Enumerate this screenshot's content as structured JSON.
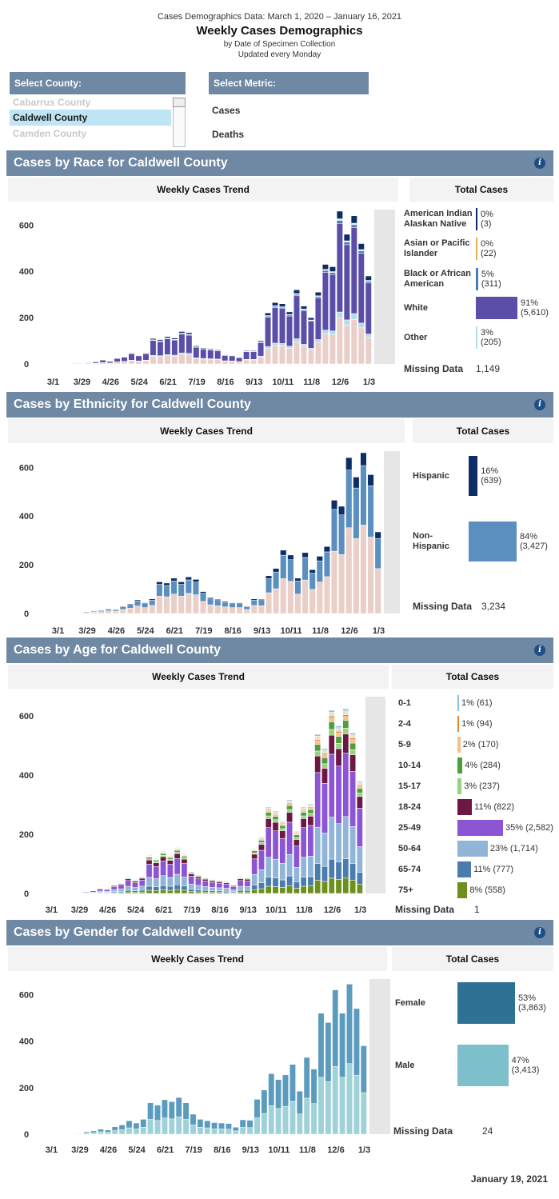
{
  "header": {
    "line1": "Cases Demographics Data: March 1, 2020 – January 16, 2021",
    "title": "Weekly Cases Demographics",
    "sub1": "by Date of Specimen Collection",
    "sub2": "Updated every Monday"
  },
  "county_select": {
    "label": "Select County:",
    "options": [
      "Cabarrus County",
      "Caldwell County",
      "Camden County"
    ],
    "selected": "Caldwell County"
  },
  "metric_select": {
    "label": "Select Metric:",
    "options": [
      "Cases",
      "Deaths"
    ]
  },
  "panel_titles": {
    "trend": "Weekly Cases Trend",
    "total": "Total Cases"
  },
  "footer": {
    "date": "January 19, 2021"
  },
  "chart_data": [
    {
      "type": "bar",
      "title": "Cases by Race for Caldwell County",
      "x_tick_labels": [
        "3/1",
        "3/29",
        "4/26",
        "5/24",
        "6/21",
        "7/19",
        "8/16",
        "9/13",
        "10/11",
        "11/8",
        "12/6",
        "1/3"
      ],
      "y_ticks": [
        "0",
        "200",
        "400",
        "600"
      ],
      "ylim": [
        0,
        660
      ],
      "weekly_totals": [
        0,
        1,
        2,
        4,
        4,
        6,
        10,
        18,
        12,
        26,
        32,
        48,
        38,
        48,
        110,
        105,
        118,
        112,
        140,
        135,
        78,
        70,
        66,
        62,
        40,
        38,
        30,
        58,
        58,
        100,
        220,
        265,
        260,
        225,
        320,
        250,
        200,
        310,
        430,
        420,
        660,
        560,
        640,
        520,
        380
      ],
      "legend": [
        {
          "name": "American Indian Alaskan Native",
          "color": "#0c2d66"
        },
        {
          "name": "Asian or Pacific Islander",
          "color": "#e0b24a"
        },
        {
          "name": "Black or African American",
          "color": "#4c7fb8"
        },
        {
          "name": "White",
          "color": "#5a4ea8"
        },
        {
          "name": "Other",
          "color": "#b3dcec"
        }
      ],
      "totals": [
        {
          "label": "American Indian Alaskan Native",
          "label_lines": [
            "American Indian",
            "Alaskan Native"
          ],
          "pct": "0%",
          "count": "(3)",
          "value": 3,
          "color": "#0c2d66"
        },
        {
          "label": "Asian or Pacific Islander",
          "label_lines": [
            "Asian or Pacific",
            "Islander"
          ],
          "pct": "0%",
          "count": "(22)",
          "value": 22,
          "color": "#e0b24a"
        },
        {
          "label": "Black or African American",
          "label_lines": [
            "Black or African",
            "American"
          ],
          "pct": "5%",
          "count": "(311)",
          "value": 311,
          "color": "#4c7fb8"
        },
        {
          "label": "White",
          "label_lines": [
            "White"
          ],
          "pct": "91%",
          "count": "(5,610)",
          "value": 5610,
          "color": "#5a4ea8"
        },
        {
          "label": "Other",
          "label_lines": [
            "Other"
          ],
          "pct": "3%",
          "count": "(205)",
          "value": 205,
          "color": "#b3dcec"
        }
      ],
      "missing_label": "Missing Data",
      "missing_value": "1,149"
    },
    {
      "type": "bar",
      "title": "Cases by Ethnicity for Caldwell County",
      "x_tick_labels": [
        "3/1",
        "3/29",
        "4/26",
        "5/24",
        "6/21",
        "7/19",
        "8/16",
        "9/13",
        "10/11",
        "11/8",
        "12/6",
        "1/3"
      ],
      "y_ticks": [
        "0",
        "200",
        "400",
        "600"
      ],
      "ylim": [
        0,
        660
      ],
      "weekly_totals": [
        0,
        1,
        2,
        4,
        8,
        10,
        14,
        20,
        18,
        30,
        40,
        56,
        44,
        60,
        130,
        125,
        145,
        130,
        150,
        140,
        90,
        65,
        58,
        50,
        44,
        44,
        30,
        60,
        58,
        155,
        185,
        260,
        240,
        145,
        250,
        180,
        235,
        275,
        465,
        440,
        640,
        560,
        660,
        570,
        335
      ],
      "legend": [
        {
          "name": "Hispanic",
          "color": "#0c2d66"
        },
        {
          "name": "Non-Hispanic",
          "color": "#5b8fbf"
        }
      ],
      "totals": [
        {
          "label": "Hispanic",
          "label_lines": [
            "Hispanic"
          ],
          "pct": "16%",
          "count": "(639)",
          "value": 639,
          "color": "#0c2d66"
        },
        {
          "label": "Non-Hispanic",
          "label_lines": [
            "Non-",
            "Hispanic"
          ],
          "pct": "84%",
          "count": "(3,427)",
          "value": 3427,
          "color": "#5b8fbf"
        }
      ],
      "missing_label": "Missing Data",
      "missing_value": "3,234"
    },
    {
      "type": "bar",
      "title": "Cases by Age for Caldwell County",
      "x_tick_labels": [
        "3/1",
        "3/29",
        "4/26",
        "5/24",
        "6/21",
        "7/19",
        "8/16",
        "9/13",
        "10/11",
        "11/8",
        "12/6",
        "1/3"
      ],
      "y_ticks": [
        "0",
        "200",
        "400",
        "600"
      ],
      "ylim": [
        0,
        660
      ],
      "weekly_totals": [
        0,
        1,
        2,
        4,
        5,
        8,
        12,
        20,
        18,
        32,
        38,
        60,
        50,
        62,
        136,
        125,
        150,
        135,
        162,
        140,
        80,
        68,
        58,
        52,
        48,
        44,
        32,
        60,
        58,
        160,
        200,
        305,
        290,
        255,
        330,
        220,
        305,
        315,
        560,
        510,
        645,
        590,
        650,
        565,
        395
      ],
      "legend": [
        {
          "name": "0-1",
          "color": "#85c1d6"
        },
        {
          "name": "2-4",
          "color": "#e08a2e"
        },
        {
          "name": "5-9",
          "color": "#f5c08c"
        },
        {
          "name": "10-14",
          "color": "#4f9e3c"
        },
        {
          "name": "15-17",
          "color": "#97d37f"
        },
        {
          "name": "18-24",
          "color": "#6d1843"
        },
        {
          "name": "25-49",
          "color": "#8c55d3"
        },
        {
          "name": "50-64",
          "color": "#91b5d6"
        },
        {
          "name": "65-74",
          "color": "#4a7cad"
        },
        {
          "name": "75+",
          "color": "#6c8f1e"
        }
      ],
      "totals": [
        {
          "label": "0-1",
          "label_lines": [
            "0-1"
          ],
          "text": "1% (61)",
          "value": 61,
          "color": "#85c1d6"
        },
        {
          "label": "2-4",
          "label_lines": [
            "2-4"
          ],
          "text": "1% (94)",
          "value": 94,
          "color": "#e08a2e"
        },
        {
          "label": "5-9",
          "label_lines": [
            "5-9"
          ],
          "text": "2% (170)",
          "value": 170,
          "color": "#f5c08c"
        },
        {
          "label": "10-14",
          "label_lines": [
            "10-14"
          ],
          "text": "4% (284)",
          "value": 284,
          "color": "#4f9e3c"
        },
        {
          "label": "15-17",
          "label_lines": [
            "15-17"
          ],
          "text": "3% (237)",
          "value": 237,
          "color": "#97d37f"
        },
        {
          "label": "18-24",
          "label_lines": [
            "18-24"
          ],
          "text": "11% (822)",
          "value": 822,
          "color": "#6d1843"
        },
        {
          "label": "25-49",
          "label_lines": [
            "25-49"
          ],
          "text": "35% (2,582)",
          "value": 2582,
          "color": "#8c55d3"
        },
        {
          "label": "50-64",
          "label_lines": [
            "50-64"
          ],
          "text": "23% (1,714)",
          "value": 1714,
          "color": "#91b5d6"
        },
        {
          "label": "65-74",
          "label_lines": [
            "65-74"
          ],
          "text": "11% (777)",
          "value": 777,
          "color": "#4a7cad"
        },
        {
          "label": "75+",
          "label_lines": [
            "75+"
          ],
          "text": "8% (558)",
          "value": 558,
          "color": "#6c8f1e"
        }
      ],
      "missing_label": "Missing Data",
      "missing_value": "1"
    },
    {
      "type": "bar",
      "title": "Cases by Gender for Caldwell County",
      "x_tick_labels": [
        "3/1",
        "3/29",
        "4/26",
        "5/24",
        "6/21",
        "7/19",
        "8/16",
        "9/13",
        "10/11",
        "11/8",
        "12/6",
        "1/3"
      ],
      "y_ticks": [
        "0",
        "200",
        "400",
        "600"
      ],
      "ylim": [
        0,
        660
      ],
      "weekly_totals": [
        0,
        1,
        2,
        3,
        4,
        10,
        14,
        22,
        18,
        32,
        40,
        58,
        48,
        64,
        135,
        125,
        148,
        140,
        158,
        135,
        86,
        64,
        58,
        50,
        48,
        46,
        30,
        62,
        60,
        150,
        190,
        260,
        235,
        255,
        300,
        185,
        330,
        280,
        520,
        480,
        620,
        520,
        645,
        540,
        380
      ],
      "legend": [
        {
          "name": "Female",
          "color": "#2f7194"
        },
        {
          "name": "Male",
          "color": "#7dc0cc"
        }
      ],
      "totals": [
        {
          "label": "Female",
          "label_lines": [
            "Female"
          ],
          "pct": "53%",
          "count": "(3,863)",
          "value": 3863,
          "color": "#2f7194"
        },
        {
          "label": "Male",
          "label_lines": [
            "Male"
          ],
          "pct": "47%",
          "count": "(3,413)",
          "value": 3413,
          "color": "#7dc0cc"
        }
      ],
      "missing_label": "Missing Data",
      "missing_value": "24"
    }
  ]
}
